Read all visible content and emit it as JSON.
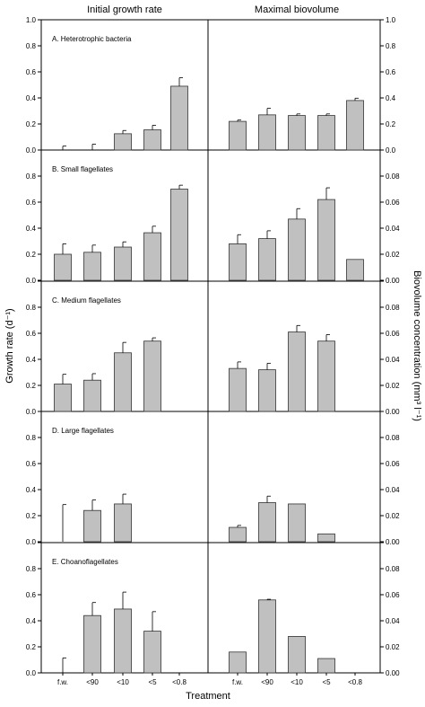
{
  "chart_data": {
    "type": "bar",
    "layout": "5 rows x 2 columns of bar panels with shared x-axis",
    "column_titles": [
      "Initial growth rate",
      "Maximal biovolume"
    ],
    "xlabel": "Treatment",
    "ylabel_left": "Growth rate (d⁻¹)",
    "ylabel_right": "Biovolume concentration (mm³ l⁻¹)",
    "categories": [
      "f.w.",
      "<90",
      "<10",
      "<5",
      "<0.8"
    ],
    "bar_color": "#c0c0c0",
    "panels": [
      {
        "label": "A. Heterotrophic bacteria",
        "left": {
          "ylim": [
            0,
            1.0
          ],
          "ticks": [
            "0.0",
            "0.2",
            "0.4",
            "0.6",
            "0.8",
            "1.0"
          ],
          "values": [
            0,
            0,
            0.125,
            0.155,
            0.49
          ],
          "errors": [
            0.03,
            0.045,
            0.025,
            0.035,
            0.065
          ]
        },
        "right": {
          "ylim": [
            0,
            1.0
          ],
          "ticks": [
            "0.0",
            "0.2",
            "0.4",
            "0.6",
            "0.8",
            "1.0"
          ],
          "values": [
            0.22,
            0.27,
            0.265,
            0.265,
            0.38
          ],
          "errors": [
            0.01,
            0.05,
            0.012,
            0.012,
            0.018
          ]
        }
      },
      {
        "label": "B. Small flagellates",
        "left": {
          "ylim": [
            0,
            1.0
          ],
          "ticks": [
            "0.0",
            "0.2",
            "0.4",
            "0.6",
            "0.8",
            "1.0"
          ],
          "values": [
            0.2,
            0.215,
            0.255,
            0.365,
            0.7
          ],
          "errors": [
            0.08,
            0.055,
            0.04,
            0.05,
            0.03
          ]
        },
        "right": {
          "ylim": [
            0,
            0.1
          ],
          "ticks": [
            "0.00",
            "0.02",
            "0.04",
            "0.06",
            "0.08",
            "0.10"
          ],
          "values": [
            0.028,
            0.032,
            0.047,
            0.062,
            0.016
          ],
          "errors": [
            0.007,
            0.006,
            0.008,
            0.009,
            0
          ]
        }
      },
      {
        "label": "C. Medium flagellates",
        "left": {
          "ylim": [
            0,
            1.0
          ],
          "ticks": [
            "0.0",
            "0.2",
            "0.4",
            "0.6",
            "0.8",
            "1.0"
          ],
          "values": [
            0.21,
            0.24,
            0.45,
            0.54,
            0
          ],
          "errors": [
            0.075,
            0.05,
            0.08,
            0.025,
            0
          ]
        },
        "right": {
          "ylim": [
            0,
            0.1
          ],
          "ticks": [
            "0.00",
            "0.02",
            "0.04",
            "0.06",
            "0.08",
            "0.10"
          ],
          "values": [
            0.033,
            0.032,
            0.061,
            0.054,
            0
          ],
          "errors": [
            0.005,
            0.005,
            0.005,
            0.005,
            0
          ]
        }
      },
      {
        "label": "D. Large flagellates",
        "left": {
          "ylim": [
            0,
            1.0
          ],
          "ticks": [
            "0.0",
            "0.2",
            "0.4",
            "0.6",
            "0.8",
            "1.0"
          ],
          "values": [
            0,
            0.24,
            0.29,
            0,
            0
          ],
          "errors": [
            0.285,
            0.08,
            0.075,
            0,
            0
          ]
        },
        "right": {
          "ylim": [
            0,
            0.1
          ],
          "ticks": [
            "0.00",
            "0.02",
            "0.04",
            "0.06",
            "0.08",
            "0.10"
          ],
          "values": [
            0.011,
            0.03,
            0.029,
            0.006,
            0
          ],
          "errors": [
            0.0015,
            0.005,
            0,
            0,
            0
          ]
        }
      },
      {
        "label": "E. Choanoflagellates",
        "left": {
          "ylim": [
            0,
            1.0
          ],
          "ticks": [
            "0.0",
            "0.2",
            "0.4",
            "0.6",
            "0.8",
            "1.0"
          ],
          "values": [
            0,
            0.44,
            0.49,
            0.32,
            0
          ],
          "errors": [
            0.115,
            0.1,
            0.13,
            0.15,
            0
          ]
        },
        "right": {
          "ylim": [
            0,
            0.1
          ],
          "ticks": [
            "0.00",
            "0.02",
            "0.04",
            "0.06",
            "0.08",
            "0.10"
          ],
          "values": [
            0.016,
            0.056,
            0.028,
            0.011,
            0
          ],
          "errors": [
            0,
            0.0005,
            0,
            0,
            0
          ]
        }
      }
    ]
  }
}
